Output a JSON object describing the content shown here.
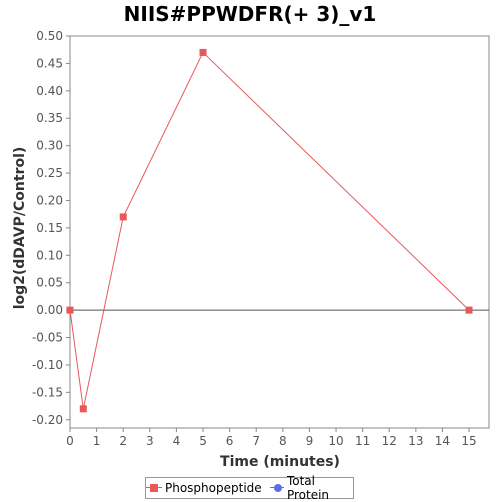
{
  "chart_data": {
    "type": "line",
    "title": "NIIS#PPWDFR(+ 3)_v1",
    "xlabel": "Time (minutes)",
    "ylabel": "log2(dDAVP/Control)",
    "xlim": [
      0,
      15.75
    ],
    "ylim": [
      -0.215,
      0.5
    ],
    "x_ticks": [
      0,
      1,
      2,
      3,
      4,
      5,
      6,
      7,
      8,
      9,
      10,
      11,
      12,
      13,
      14,
      15
    ],
    "y_ticks": [
      0.5,
      0.45,
      0.4,
      0.35,
      0.3,
      0.25,
      0.2,
      0.15,
      0.1,
      0.05,
      0.0,
      -0.05,
      -0.1,
      -0.15,
      -0.2
    ],
    "y_tick_labels": [
      "0.50",
      "0.45",
      "0.40",
      "0.35",
      "0.30",
      "0.25",
      "0.20",
      "0.15",
      "0.10",
      "0.05",
      "0.00",
      "-0.05",
      "-0.10",
      "-0.15",
      "-0.20"
    ],
    "reference_line_y": 0.0,
    "series": [
      {
        "name": "Phosphopeptide",
        "color": "#e8575a",
        "marker": "square",
        "x": [
          0,
          0.5,
          2,
          5,
          15
        ],
        "y": [
          0.0,
          -0.18,
          0.17,
          0.47,
          0.0
        ]
      }
    ],
    "legend": {
      "position": "bottom-center",
      "entries": [
        {
          "label": "Phosphopeptide",
          "color": "#e8575a",
          "marker": "square"
        },
        {
          "label": "Total Protein",
          "color": "#5b6ee8",
          "marker": "circle"
        }
      ]
    }
  }
}
